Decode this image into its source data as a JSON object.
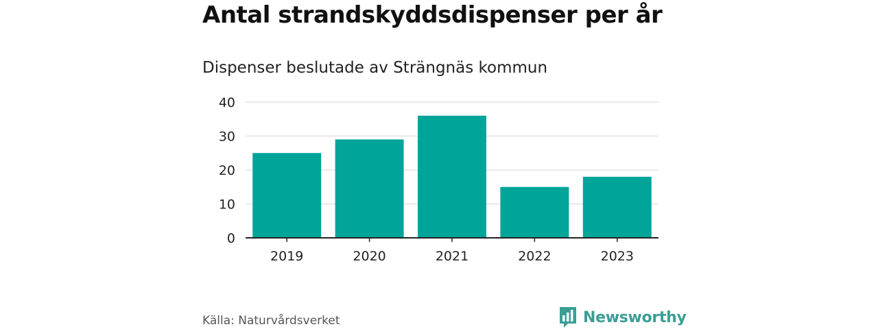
{
  "header": {
    "title": "Antal strandskyddsdispenser per år",
    "subtitle": "Dispenser beslutade av Strängnäs kommun"
  },
  "footer": {
    "source": "Källa: Naturvårdsverket",
    "brand": "Newsworthy",
    "brand_icon": "bar-chart-icon"
  },
  "colors": {
    "bar": "#00a499",
    "grid": "#dddddd",
    "axis": "#222222",
    "brand": "#3a9e95"
  },
  "chart_data": {
    "type": "bar",
    "title": "Antal strandskyddsdispenser per år",
    "subtitle": "Dispenser beslutade av Strängnäs kommun",
    "categories": [
      "2019",
      "2020",
      "2021",
      "2022",
      "2023"
    ],
    "values": [
      25,
      29,
      36,
      15,
      18
    ],
    "xlabel": "",
    "ylabel": "",
    "ylim": [
      0,
      40
    ],
    "yticks": [
      "0",
      "10",
      "20",
      "30",
      "40"
    ],
    "grid": true,
    "legend": "none"
  }
}
